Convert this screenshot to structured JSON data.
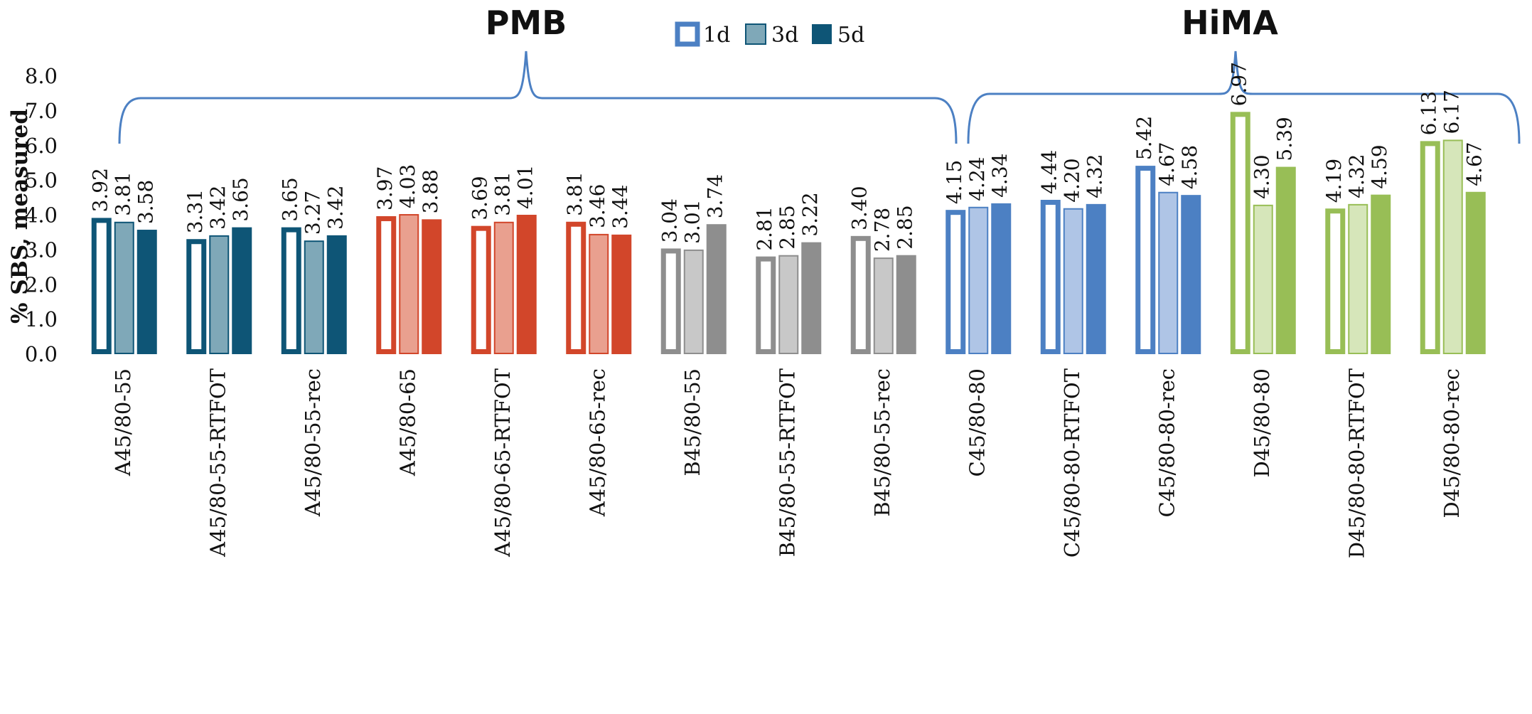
{
  "chart_data": {
    "type": "bar",
    "title": "",
    "xlabel": "",
    "ylabel": "% SBS, measured",
    "ylim": [
      0,
      8
    ],
    "yticks": [
      "0.0",
      "1.0",
      "2.0",
      "3.0",
      "4.0",
      "5.0",
      "6.0",
      "7.0",
      "8.0"
    ],
    "grid": false,
    "legend": {
      "position": "top-center",
      "entries": [
        "1d",
        "3d",
        "5d"
      ]
    },
    "brace_groups": [
      {
        "label": "PMB",
        "start_index": 0,
        "end_index": 8
      },
      {
        "label": "HiMA",
        "start_index": 9,
        "end_index": 14
      }
    ],
    "categories": [
      "A45/80-55",
      "A45/80-55-RTFOT",
      "A45/80-55-rec",
      "A45/80-65",
      "A45/80-65-RTFOT",
      "A45/80-65-rec",
      "B45/80-55",
      "B45/80-55-RTFOT",
      "B45/80-55-rec",
      "C45/80-80",
      "C45/80-80-RTFOT",
      "C45/80-80-rec",
      "D45/80-80",
      "D45/80-80-RTFOT",
      "D45/80-80-rec"
    ],
    "series": [
      {
        "name": "1d",
        "values": [
          3.92,
          3.31,
          3.65,
          3.97,
          3.69,
          3.81,
          3.04,
          2.81,
          3.4,
          4.15,
          4.44,
          5.42,
          6.97,
          4.19,
          6.13
        ],
        "labels": [
          "3.92",
          "3.31",
          "3.65",
          "3.97",
          "3.69",
          "3.81",
          "3.04",
          "2.81",
          "3.40",
          "4.15",
          "4.44",
          "5.42",
          "6.97",
          "4.19",
          "6.13"
        ]
      },
      {
        "name": "3d",
        "values": [
          3.81,
          3.42,
          3.27,
          4.03,
          3.81,
          3.46,
          3.01,
          2.85,
          2.78,
          4.24,
          4.2,
          4.67,
          4.3,
          4.32,
          6.17
        ],
        "labels": [
          "3.81",
          "3.42",
          "3.27",
          "4.03",
          "3.81",
          "3.46",
          "3.01",
          "2.85",
          "2.78",
          "4.24",
          "4.20",
          "4.67",
          "4.30",
          "4.32",
          "6.17"
        ]
      },
      {
        "name": "5d",
        "values": [
          3.58,
          3.65,
          3.42,
          3.88,
          4.01,
          3.44,
          3.74,
          3.22,
          2.85,
          4.34,
          4.32,
          4.58,
          5.39,
          4.59,
          4.67
        ],
        "labels": [
          "3.58",
          "3.65",
          "3.42",
          "3.88",
          "4.01",
          "3.44",
          "3.74",
          "3.22",
          "2.85",
          "4.34",
          "4.32",
          "4.58",
          "5.39",
          "4.59",
          "4.67"
        ]
      }
    ],
    "category_colors": {
      "A45/80-55": {
        "main": "#0E5576",
        "light": "#7FA8B8"
      },
      "A45/80-55-RTFOT": {
        "main": "#0E5576",
        "light": "#7FA8B8"
      },
      "A45/80-55-rec": {
        "main": "#0E5576",
        "light": "#7FA8B8"
      },
      "A45/80-65": {
        "main": "#D2462A",
        "light": "#E9A08F"
      },
      "A45/80-65-RTFOT": {
        "main": "#D2462A",
        "light": "#E9A08F"
      },
      "A45/80-65-rec": {
        "main": "#D2462A",
        "light": "#E9A08F"
      },
      "B45/80-55": {
        "main": "#8E8E8E",
        "light": "#C8C8C8"
      },
      "B45/80-55-RTFOT": {
        "main": "#8E8E8E",
        "light": "#C8C8C8"
      },
      "B45/80-55-rec": {
        "main": "#8E8E8E",
        "light": "#C8C8C8"
      },
      "C45/80-80": {
        "main": "#4C80C3",
        "light": "#AFC5E6"
      },
      "C45/80-80-RTFOT": {
        "main": "#4C80C3",
        "light": "#AFC5E6"
      },
      "C45/80-80-rec": {
        "main": "#4C80C3",
        "light": "#AFC5E6"
      },
      "D45/80-80": {
        "main": "#98BE56",
        "light": "#D6E6BA"
      },
      "D45/80-80-RTFOT": {
        "main": "#98BE56",
        "light": "#D6E6BA"
      },
      "D45/80-80-rec": {
        "main": "#98BE56",
        "light": "#D6E6BA"
      }
    },
    "legend_colors": {
      "1d_border": "#4C80C3",
      "3d_fill": "#7FA8B8",
      "3d_border": "#0E5576",
      "5d_fill": "#0E5576"
    },
    "brace_color": "#4C80C3"
  }
}
